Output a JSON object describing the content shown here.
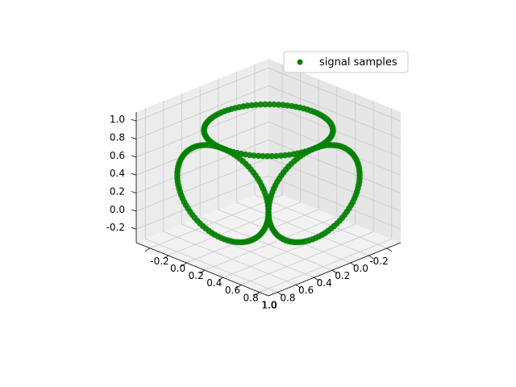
{
  "chart_data": {
    "type": "scatter",
    "projection": "3d",
    "title": "",
    "xlabel": "",
    "ylabel": "",
    "zlabel": "",
    "xlim": [
      -0.35,
      1.1
    ],
    "ylim": [
      -0.35,
      1.1
    ],
    "zlim": [
      -0.35,
      1.1
    ],
    "x_ticks": [
      "-0.2",
      "0.0",
      "0.2",
      "0.4",
      "0.6",
      "0.8",
      "1.0"
    ],
    "y_ticks": [
      "-0.2",
      "0.0",
      "0.2",
      "0.4",
      "0.6",
      "0.8",
      "1.0"
    ],
    "z_ticks": [
      "-0.2",
      "0.0",
      "0.2",
      "0.4",
      "0.6",
      "0.8",
      "1.0"
    ],
    "grid": true,
    "legend_position": "top-right",
    "series": [
      {
        "name": "signal samples",
        "color": "#008000",
        "marker": "circle",
        "rings": [
          {
            "plane": "xy",
            "z": 1.0,
            "center": [
              0.5,
              0.5
            ],
            "radius": 0.5
          },
          {
            "plane": "yz",
            "x": 1.0,
            "center": [
              0.5,
              0.5
            ],
            "radius": 0.5
          },
          {
            "plane": "xz",
            "y": 1.0,
            "center": [
              0.5,
              0.5
            ],
            "radius": 0.5
          }
        ],
        "points_per_ring": 90
      }
    ]
  }
}
